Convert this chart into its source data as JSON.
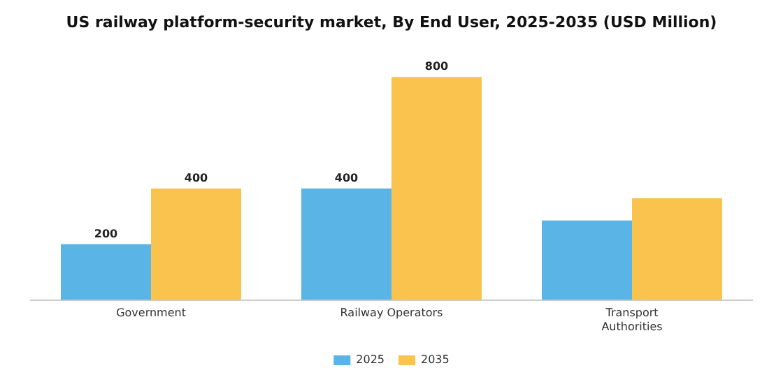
{
  "chart_data": {
    "type": "bar",
    "title": "US railway platform-security market, By End User, 2025-2035 (USD Million)",
    "categories": [
      "Government",
      "Railway Operators",
      "Transport Authorities"
    ],
    "series": [
      {
        "name": "2025",
        "color": "#5ab4e6",
        "values": [
          200,
          400,
          285
        ],
        "value_labels": [
          "200",
          "400",
          null
        ]
      },
      {
        "name": "2035",
        "color": "#f9c34e",
        "values": [
          400,
          800,
          365
        ],
        "value_labels": [
          "400",
          "800",
          null
        ]
      }
    ],
    "legend": "bottom",
    "grid": false
  }
}
